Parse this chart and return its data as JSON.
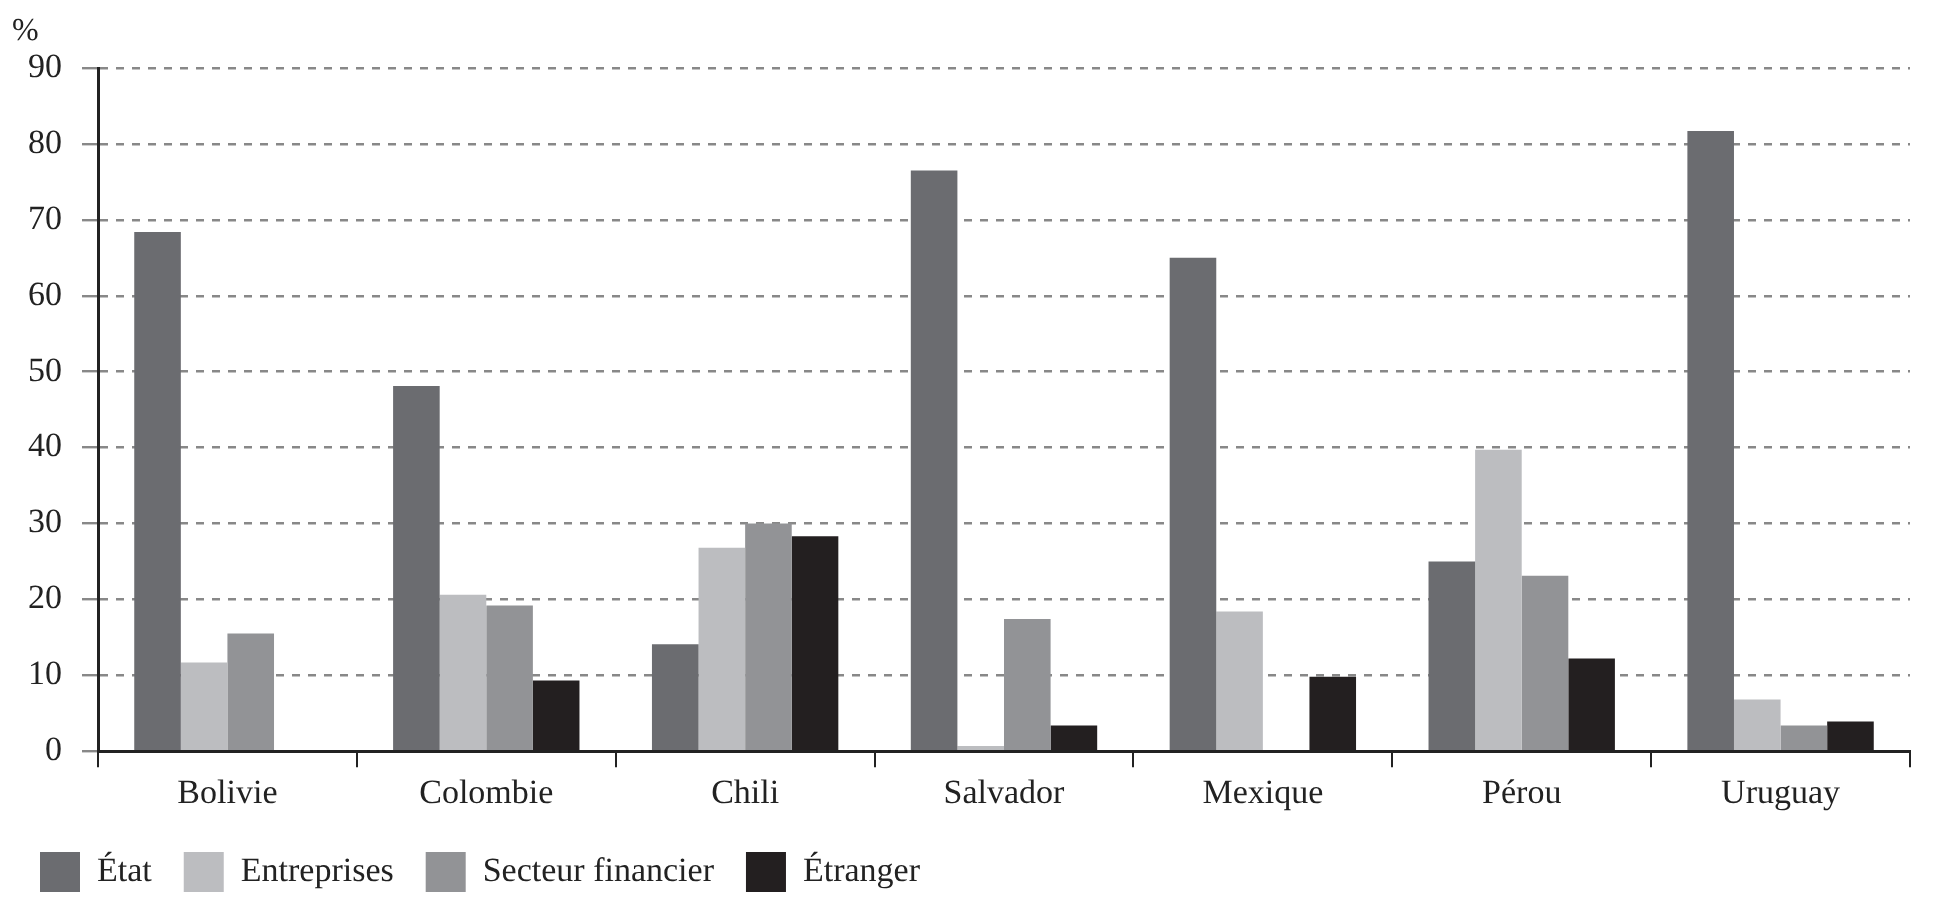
{
  "chart_data": {
    "type": "bar",
    "ylabel": "%",
    "categories": [
      "Bolivie",
      "Colombie",
      "Chili",
      "Salvador",
      "Mexique",
      "Pérou",
      "Uruguay"
    ],
    "series": [
      {
        "name": "État",
        "color": "#6b6c70",
        "values": [
          68.4,
          48.1,
          14.1,
          76.5,
          65.0,
          25.0,
          81.7
        ]
      },
      {
        "name": "Entreprises",
        "color": "#bcbdc0",
        "values": [
          11.7,
          20.6,
          26.8,
          0.7,
          18.4,
          39.7,
          6.8
        ]
      },
      {
        "name": "Secteur financier",
        "color": "#929396",
        "values": [
          15.5,
          19.2,
          30.0,
          17.4,
          null,
          23.1,
          3.4
        ]
      },
      {
        "name": "Étranger",
        "color": "#231f20",
        "values": [
          null,
          9.3,
          28.3,
          3.4,
          9.8,
          12.2,
          3.9
        ]
      }
    ],
    "ylim": [
      0,
      90
    ],
    "yticks": [
      0,
      10,
      20,
      30,
      40,
      50,
      60,
      70,
      80,
      90
    ],
    "grid": "y",
    "legend": "bottom left"
  }
}
